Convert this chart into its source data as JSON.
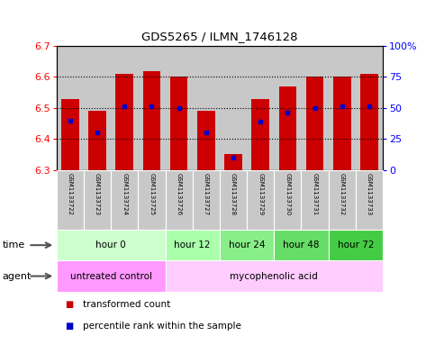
{
  "title": "GDS5265 / ILMN_1746128",
  "samples": [
    "GSM1133722",
    "GSM1133723",
    "GSM1133724",
    "GSM1133725",
    "GSM1133726",
    "GSM1133727",
    "GSM1133728",
    "GSM1133729",
    "GSM1133730",
    "GSM1133731",
    "GSM1133732",
    "GSM1133733"
  ],
  "bar_bottom": 6.3,
  "bar_tops": [
    6.53,
    6.49,
    6.61,
    6.62,
    6.6,
    6.49,
    6.35,
    6.53,
    6.57,
    6.6,
    6.6,
    6.61
  ],
  "percentile_values": [
    6.46,
    6.42,
    6.505,
    6.505,
    6.5,
    6.42,
    6.34,
    6.455,
    6.485,
    6.5,
    6.505,
    6.505
  ],
  "ylim_left": [
    6.3,
    6.7
  ],
  "ylim_right": [
    0,
    100
  ],
  "yticks_left": [
    6.3,
    6.4,
    6.5,
    6.6,
    6.7
  ],
  "yticks_right": [
    0,
    25,
    50,
    75,
    100
  ],
  "ytick_labels_right": [
    "0",
    "25",
    "50",
    "75",
    "100%"
  ],
  "bar_color": "#cc0000",
  "blue_color": "#0000cc",
  "bg_color": "#c8c8c8",
  "time_groups": [
    {
      "label": "hour 0",
      "start": 0,
      "end": 4,
      "color": "#ccffcc"
    },
    {
      "label": "hour 12",
      "start": 4,
      "end": 6,
      "color": "#aaffaa"
    },
    {
      "label": "hour 24",
      "start": 6,
      "end": 8,
      "color": "#88ee88"
    },
    {
      "label": "hour 48",
      "start": 8,
      "end": 10,
      "color": "#66dd66"
    },
    {
      "label": "hour 72",
      "start": 10,
      "end": 12,
      "color": "#44cc44"
    }
  ],
  "agent_groups": [
    {
      "label": "untreated control",
      "start": 0,
      "end": 4,
      "color": "#ff99ff"
    },
    {
      "label": "mycophenolic acid",
      "start": 4,
      "end": 12,
      "color": "#ffccff"
    }
  ],
  "legend_items": [
    {
      "label": "transformed count",
      "color": "#cc0000"
    },
    {
      "label": "percentile rank within the sample",
      "color": "#0000cc"
    }
  ]
}
